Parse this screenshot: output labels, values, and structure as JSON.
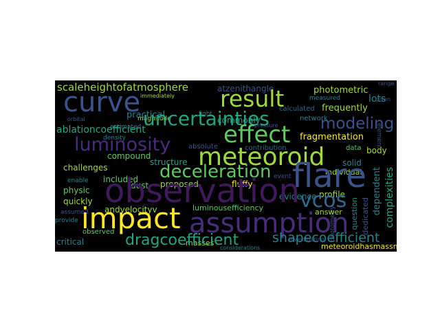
{
  "palette": {
    "background": "#000000",
    "purple": "#472c7a",
    "indigo": "#3b528b",
    "blue": "#31688e",
    "teal": "#26828e",
    "aqua": "#21a685",
    "green": "#5ec962",
    "lime": "#a0da39",
    "yellow": "#fde725",
    "deep": "#3e1a5b"
  },
  "words": {
    "observation": "observation",
    "meteoroid": "meteoroid",
    "flare": "flare",
    "assumption": "assumption",
    "impact": "impact",
    "effect": "effect",
    "result": "result",
    "curve": "curve",
    "uncertainties": "uncertainties",
    "modeling": "modeling",
    "deceleration": "deceleration",
    "luminosity": "luminosity",
    "vcos": "vcos",
    "dragcoefficient": "dragcoefficient",
    "shapecoefficient": "shapecoefficient",
    "ablationcoefficient": "ablationcoefficient",
    "scaleheightofatmosphere": "scaleheightofatmosphere",
    "fragmentation": "fragmentation",
    "photometric": "photometric",
    "frequently": "frequently",
    "practical": "practical",
    "commonly": "commonly",
    "compound": "compound",
    "structure": "structure",
    "challenges": "challenges",
    "included": "included",
    "physic": "physic",
    "proposed": "proposed",
    "dust": "dust",
    "fluffy": "fluffy",
    "quickly": "quickly",
    "andvelocityv": "andvelocityv",
    "luminousefficiency": "luminousefficiency",
    "evidence": "evidence",
    "critical": "critical",
    "observed": "observed",
    "masses": "masses",
    "meteoroidhasmassm": "meteoroidhasmassm",
    "complexities": "complexities",
    "dependent": "dependent",
    "dedicated": "dedicated",
    "lots": "lots",
    "solid": "solid",
    "individual": "individual",
    "body": "body",
    "data": "data",
    "profile": "profile",
    "answer": "answer",
    "question": "question",
    "atzenithangle": "atzenithangle",
    "immediately": "immediately",
    "magnitude": "magnitude",
    "estimated": "estimated",
    "density": "density",
    "absolute": "absolute",
    "contribution": "contribution",
    "network": "network",
    "calculated": "calculated",
    "measured": "measured",
    "given": "given",
    "pressure": "pressure",
    "light": "light",
    "element": "element",
    "photometry": "photometry",
    "event": "event",
    "assumed": "assumed",
    "provide": "provide",
    "enable": "enable",
    "orbital": "orbital",
    "range": "range",
    "considerations": "considerations",
    "investigating": "investigating"
  }
}
